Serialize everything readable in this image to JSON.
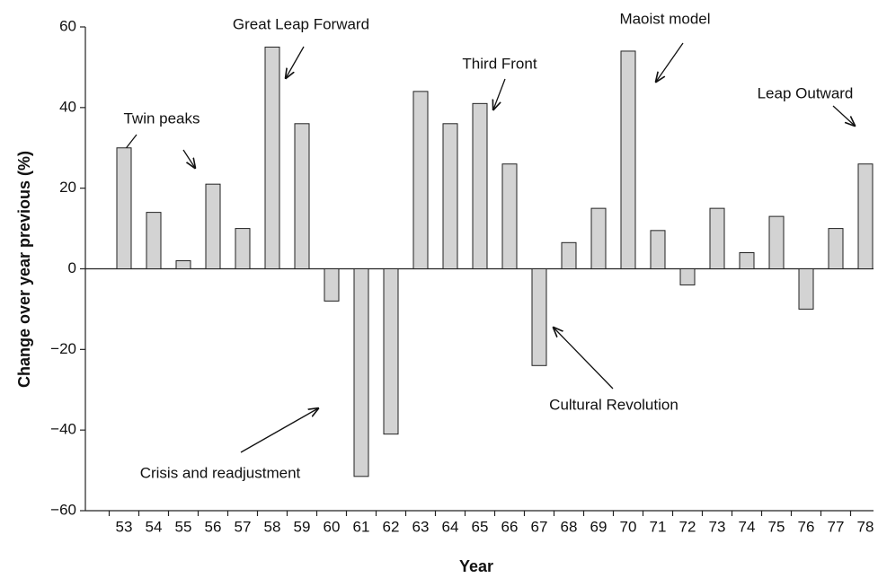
{
  "chart_data": {
    "type": "bar",
    "x_label": "Year",
    "y_label": "Change over year previous (%)",
    "categories": [
      "53",
      "54",
      "55",
      "56",
      "57",
      "58",
      "59",
      "60",
      "61",
      "62",
      "63",
      "64",
      "65",
      "66",
      "67",
      "68",
      "69",
      "70",
      "71",
      "72",
      "73",
      "74",
      "75",
      "76",
      "77",
      "78"
    ],
    "values": [
      30,
      14,
      2,
      21,
      10,
      55,
      36,
      -8,
      -51.5,
      -41,
      44,
      36,
      41,
      26,
      -24,
      6.5,
      15,
      54,
      9.5,
      -4,
      15,
      4,
      13,
      -10,
      10,
      26
    ],
    "color": "#d3d3d3",
    "ylim": [
      -60,
      60
    ],
    "yticks": [
      {
        "value": -60,
        "label": "−60"
      },
      {
        "value": -40,
        "label": "−40"
      },
      {
        "value": -20,
        "label": "−20"
      },
      0,
      20,
      40,
      60
    ],
    "annotations": [
      "Twin peaks",
      "Great Leap Forward",
      "Third Front",
      "Maoist model",
      "Leap Outward",
      "Cultural Revolution",
      "Crisis and readjustment"
    ]
  }
}
